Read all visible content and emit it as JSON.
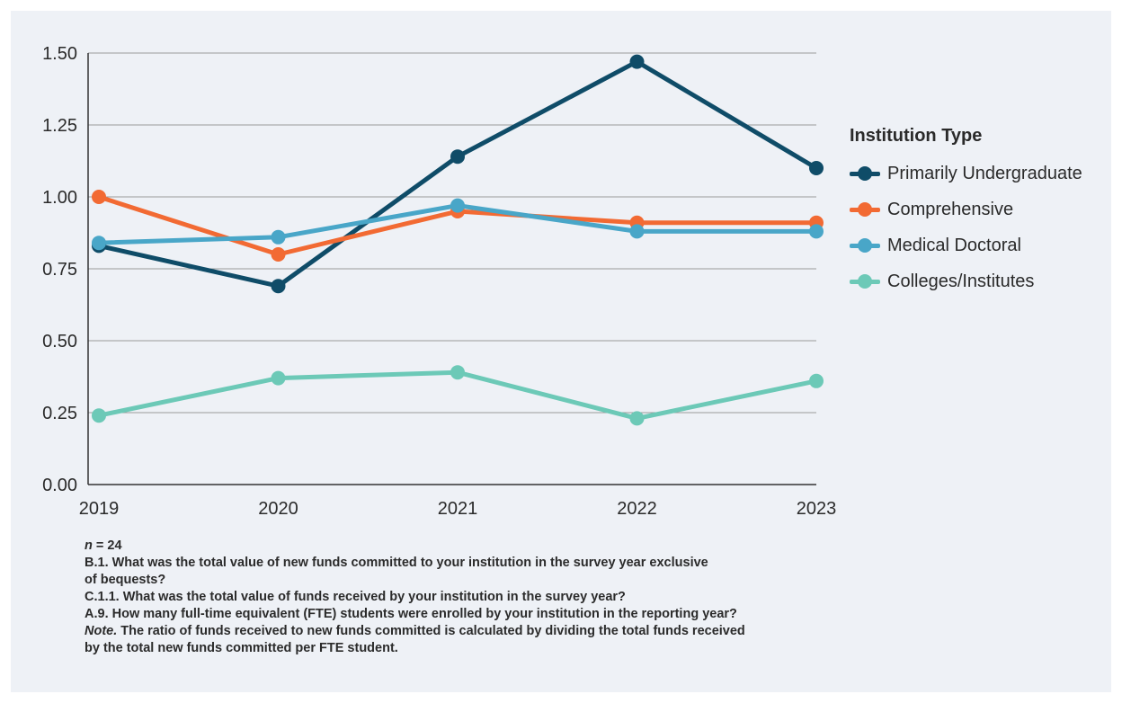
{
  "chart_data": {
    "type": "line",
    "categories": [
      "2019",
      "2020",
      "2021",
      "2022",
      "2023"
    ],
    "ylim": [
      0,
      1.5
    ],
    "yticks": [
      "0.00",
      "0.25",
      "0.50",
      "0.75",
      "1.00",
      "1.25",
      "1.50"
    ],
    "ytick_values": [
      0,
      0.25,
      0.5,
      0.75,
      1.0,
      1.25,
      1.5
    ],
    "grid": true,
    "legend_title": "Institution Type",
    "legend_position": "right",
    "series": [
      {
        "name": "Primarily Undergraduate",
        "color": "#0f4c68",
        "values": [
          0.83,
          0.69,
          1.14,
          1.47,
          1.1
        ]
      },
      {
        "name": "Comprehensive",
        "color": "#f26a33",
        "values": [
          1.0,
          0.8,
          0.95,
          0.91,
          0.91
        ]
      },
      {
        "name": "Medical Doctoral",
        "color": "#49a6c8",
        "values": [
          0.84,
          0.86,
          0.97,
          0.88,
          0.88
        ]
      },
      {
        "name": "Colleges/Institutes",
        "color": "#6cc9b7",
        "values": [
          0.24,
          0.37,
          0.39,
          0.23,
          0.36
        ]
      }
    ]
  },
  "notes": {
    "n_label": "n",
    "n_value": " = 24",
    "line_b1_a": "B.1. What was the total value of new funds committed to your institution in the survey year exclusive",
    "line_b1_b": "of bequests?",
    "line_c11": "C.1.1. What was the total value of funds received by your institution in the survey year?",
    "line_a9": "A.9. How many full-time equivalent (FTE) students were enrolled by your institution in the reporting year?",
    "note_label": "Note.",
    "note_text_a": " The ratio of funds received to new funds committed is calculated by dividing the total funds received",
    "note_text_b": "by the total new funds committed per FTE student."
  }
}
